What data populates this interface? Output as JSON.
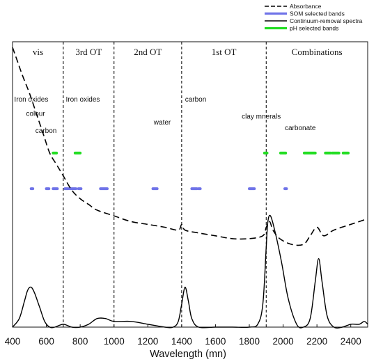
{
  "chart_data": {
    "type": "line",
    "xlabel": "Wavelength (mn)",
    "ylabel": "",
    "xlim": [
      400,
      2500
    ],
    "xticks": [
      400,
      600,
      800,
      1000,
      1200,
      1400,
      1600,
      1800,
      2000,
      2200,
      2400
    ],
    "grid": false,
    "legend": {
      "position": "top-right",
      "entries": [
        {
          "label": "Absorbance",
          "style": "dashed",
          "color": "#000000"
        },
        {
          "label": "SOM selected bands",
          "style": "solid",
          "color": "#6f73e8"
        },
        {
          "label": "Continuum-removal spectra",
          "style": "solid",
          "color": "#000000"
        },
        {
          "label": "pH selected bands",
          "style": "solid",
          "color": "#22dd22"
        }
      ]
    },
    "regions": [
      {
        "label": "vis",
        "from": 400,
        "to": 700
      },
      {
        "label": "3rd OT",
        "from": 700,
        "to": 1000
      },
      {
        "label": "2nd OT",
        "from": 1000,
        "to": 1400
      },
      {
        "label": "1st OT",
        "from": 1400,
        "to": 1900
      },
      {
        "label": "Combinations",
        "from": 1900,
        "to": 2500
      }
    ],
    "boundaries": [
      700,
      1000,
      1400,
      1900
    ],
    "annotations": [
      {
        "text": "Iron oxides",
        "x": 410,
        "level": 0.21
      },
      {
        "text": "colour",
        "x": 480,
        "level": 0.26
      },
      {
        "text": "carbon",
        "x": 535,
        "level": 0.32
      },
      {
        "text": "Iron oxides",
        "x": 715,
        "level": 0.21
      },
      {
        "text": "water",
        "x": 1235,
        "level": 0.29
      },
      {
        "text": "carbon",
        "x": 1420,
        "level": 0.21
      },
      {
        "text": "clay mnerals",
        "x": 1755,
        "level": 0.27
      },
      {
        "text": "carbonate",
        "x": 2010,
        "level": 0.31
      }
    ],
    "series": [
      {
        "name": "Absorbance",
        "style": "dashed",
        "x": [
          400,
          430,
          460,
          500,
          540,
          580,
          620,
          660,
          700,
          750,
          800,
          850,
          900,
          1000,
          1100,
          1200,
          1300,
          1380,
          1400,
          1420,
          1500,
          1600,
          1700,
          1800,
          1880,
          1900,
          1920,
          1940,
          1980,
          2050,
          2120,
          2160,
          2200,
          2240,
          2300,
          2400,
          2500
        ],
        "y": [
          0.98,
          0.93,
          0.88,
          0.82,
          0.75,
          0.68,
          0.61,
          0.57,
          0.53,
          0.48,
          0.45,
          0.43,
          0.41,
          0.39,
          0.37,
          0.36,
          0.35,
          0.34,
          0.36,
          0.34,
          0.33,
          0.32,
          0.31,
          0.31,
          0.32,
          0.35,
          0.37,
          0.34,
          0.31,
          0.29,
          0.29,
          0.32,
          0.35,
          0.32,
          0.34,
          0.36,
          0.38
        ]
      },
      {
        "name": "Continuum-removal spectra",
        "style": "solid",
        "x": [
          400,
          440,
          470,
          490,
          510,
          530,
          560,
          590,
          620,
          650,
          700,
          750,
          800,
          850,
          900,
          950,
          1000,
          1100,
          1200,
          1300,
          1350,
          1380,
          1400,
          1420,
          1440,
          1460,
          1500,
          1600,
          1700,
          1800,
          1850,
          1880,
          1900,
          1910,
          1925,
          1950,
          1990,
          2030,
          2080,
          2120,
          2160,
          2190,
          2210,
          2230,
          2260,
          2300,
          2350,
          2400,
          2450,
          2480,
          2500
        ],
        "y": [
          0.0,
          0.03,
          0.09,
          0.13,
          0.14,
          0.12,
          0.07,
          0.02,
          0.0,
          0.0,
          0.01,
          0.0,
          0.0,
          0.01,
          0.03,
          0.03,
          0.02,
          0.02,
          0.01,
          0.0,
          0.0,
          0.02,
          0.08,
          0.14,
          0.09,
          0.03,
          0.0,
          0.0,
          0.0,
          0.0,
          0.01,
          0.08,
          0.28,
          0.37,
          0.39,
          0.34,
          0.23,
          0.1,
          0.01,
          0.0,
          0.03,
          0.16,
          0.24,
          0.16,
          0.04,
          0.0,
          0.0,
          0.01,
          0.01,
          0.02,
          0.01
        ]
      }
    ],
    "band_rows": [
      {
        "name": "pH selected bands",
        "color": "#22dd22",
        "level": 0.61,
        "segments": [
          [
            640,
            660
          ],
          [
            770,
            800
          ],
          [
            1890,
            1905
          ],
          [
            1985,
            2015
          ],
          [
            2125,
            2190
          ],
          [
            2250,
            2280
          ],
          [
            2290,
            2330
          ],
          [
            2355,
            2385
          ]
        ]
      },
      {
        "name": "SOM selected bands",
        "color": "#6f73e8",
        "level": 0.485,
        "segments": [
          [
            510,
            520
          ],
          [
            600,
            615
          ],
          [
            640,
            665
          ],
          [
            710,
            730
          ],
          [
            740,
            775
          ],
          [
            790,
            805
          ],
          [
            920,
            960
          ],
          [
            1230,
            1255
          ],
          [
            1460,
            1490
          ],
          [
            1500,
            1510
          ],
          [
            1800,
            1830
          ],
          [
            2010,
            2020
          ]
        ]
      }
    ]
  }
}
